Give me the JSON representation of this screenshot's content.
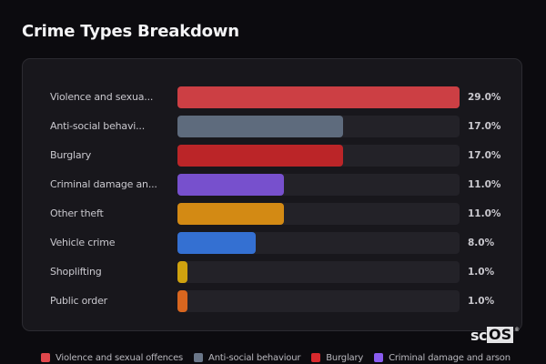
{
  "header": {
    "title": "Crime Types Breakdown"
  },
  "rows": [
    {
      "label": "Violence and sexua...",
      "value_text": "29.0%",
      "pct": 100,
      "color": "#cc3f44"
    },
    {
      "label": "Anti-social behavi...",
      "value_text": "17.0%",
      "pct": 58.6,
      "color": "#5e6b7d"
    },
    {
      "label": "Burglary",
      "value_text": "17.0%",
      "pct": 58.6,
      "color": "#bb2528"
    },
    {
      "label": "Criminal damage an...",
      "value_text": "11.0%",
      "pct": 37.9,
      "color": "#7750cd"
    },
    {
      "label": "Other theft",
      "value_text": "11.0%",
      "pct": 37.9,
      "color": "#d38a14"
    },
    {
      "label": "Vehicle crime",
      "value_text": "8.0%",
      "pct": 27.6,
      "color": "#3470d2"
    },
    {
      "label": "Shoplifting",
      "value_text": "1.0%",
      "pct": 3.4,
      "color": "#cfa20f"
    },
    {
      "label": "Public order",
      "value_text": "1.0%",
      "pct": 3.4,
      "color": "#d8661f"
    }
  ],
  "legend": [
    {
      "label": "Violence and sexual offences",
      "color": "#e0474c"
    },
    {
      "label": "Anti-social behaviour",
      "color": "#6a7688"
    },
    {
      "label": "Burglary",
      "color": "#d8292d"
    },
    {
      "label": "Criminal damage and arson",
      "color": "#8a5cf0"
    }
  ],
  "logo": {
    "left": "sc",
    "right": "OS",
    "mark": "®"
  },
  "chart_data": {
    "type": "bar",
    "orientation": "horizontal",
    "title": "Crime Types Breakdown",
    "categories": [
      "Violence and sexual offences",
      "Anti-social behaviour",
      "Burglary",
      "Criminal damage and arson",
      "Other theft",
      "Vehicle crime",
      "Shoplifting",
      "Public order"
    ],
    "values": [
      29.0,
      17.0,
      17.0,
      11.0,
      11.0,
      8.0,
      1.0,
      1.0
    ],
    "value_labels": [
      "29.0%",
      "17.0%",
      "17.0%",
      "11.0%",
      "11.0%",
      "8.0%",
      "1.0%",
      "1.0%"
    ],
    "colors": [
      "#cc3f44",
      "#5e6b7d",
      "#bb2528",
      "#7750cd",
      "#d38a14",
      "#3470d2",
      "#cfa20f",
      "#d8661f"
    ],
    "xlabel": "",
    "ylabel": "",
    "xlim": [
      0,
      29
    ],
    "unit": "%",
    "grid": false,
    "legend_position": "bottom"
  }
}
